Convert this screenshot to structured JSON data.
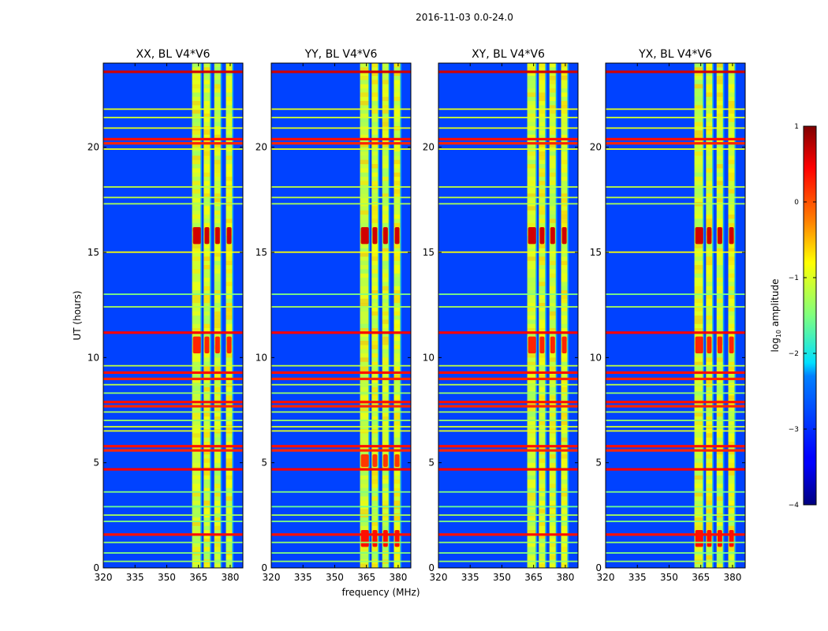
{
  "figure": {
    "suptitle": "2016-11-03 0.0-24.0"
  },
  "chart_data": {
    "type": "heatmap",
    "title": "2016-11-03 0.0-24.0",
    "xlabel": "frequency (MHz)",
    "ylabel": "UT (hours)",
    "xlim": [
      320,
      386
    ],
    "ylim": [
      0,
      24
    ],
    "x_ticks": [
      320,
      335,
      350,
      365,
      380
    ],
    "y_ticks": [
      0,
      5,
      10,
      15,
      20
    ],
    "panels": [
      {
        "title": "XX, BL V4*V6",
        "polarization": "XX"
      },
      {
        "title": "YY, BL V4*V6",
        "polarization": "YY"
      },
      {
        "title": "XY, BL V4*V6",
        "polarization": "XY"
      },
      {
        "title": "YX, BL V4*V6",
        "polarization": "YX"
      }
    ],
    "colorbar": {
      "label_prefix": "log",
      "label_sub": "10",
      "label_suffix": " amplitude",
      "range": [
        -4,
        1
      ],
      "ticks": [
        1,
        0,
        -1,
        -2,
        -3,
        -4
      ],
      "tick_labels": [
        "1",
        "0",
        "−1",
        "−2",
        "−3",
        "−4"
      ],
      "colormap": "jet"
    },
    "rfi_channels_mhz": [
      364.5,
      369,
      374,
      379.5
    ],
    "rfi_bands_mhz": [
      [
        362,
        366.5
      ],
      [
        367.5,
        370.5
      ],
      [
        372.5,
        375.5
      ],
      [
        378,
        381
      ]
    ],
    "flagged_hours": [
      {
        "t": 23.6,
        "level": 0.6
      },
      {
        "t": 21.8,
        "level": -1.0
      },
      {
        "t": 21.4,
        "level": -1.1
      },
      {
        "t": 20.9,
        "level": -1.0
      },
      {
        "t": 20.4,
        "level": 0.3
      },
      {
        "t": 20.2,
        "level": 0.2
      },
      {
        "t": 19.9,
        "level": -1.0
      },
      {
        "t": 18.1,
        "level": -1.2
      },
      {
        "t": 17.6,
        "level": -1.2
      },
      {
        "t": 17.3,
        "level": -1.3
      },
      {
        "t": 15.0,
        "level": -0.9
      },
      {
        "t": 13.0,
        "level": -1.5
      },
      {
        "t": 12.4,
        "level": -1.3
      },
      {
        "t": 11.2,
        "level": 0.4
      },
      {
        "t": 9.6,
        "level": -1.2
      },
      {
        "t": 9.3,
        "level": 0.3
      },
      {
        "t": 9.0,
        "level": 0.2
      },
      {
        "t": 8.7,
        "level": -1.2
      },
      {
        "t": 8.3,
        "level": -1.4
      },
      {
        "t": 7.9,
        "level": 0.3
      },
      {
        "t": 7.7,
        "level": 0.2
      },
      {
        "t": 7.4,
        "level": -1.3
      },
      {
        "t": 7.0,
        "level": -1.4
      },
      {
        "t": 6.7,
        "level": -1.1
      },
      {
        "t": 6.5,
        "level": -1.0
      },
      {
        "t": 5.8,
        "level": 0.3
      },
      {
        "t": 5.6,
        "level": 0.2
      },
      {
        "t": 4.7,
        "level": 0.4
      },
      {
        "t": 3.6,
        "level": -1.5
      },
      {
        "t": 2.9,
        "level": -1.6
      },
      {
        "t": 2.5,
        "level": -1.3
      },
      {
        "t": 2.2,
        "level": -1.5
      },
      {
        "t": 1.6,
        "level": 0.3
      },
      {
        "t": 1.2,
        "level": -1.4
      },
      {
        "t": 0.7,
        "level": -1.5
      },
      {
        "t": 0.3,
        "level": -1.4
      }
    ],
    "hotspots": [
      {
        "panel": [
          0,
          1,
          2,
          3
        ],
        "t_from": 15.4,
        "t_to": 16.2,
        "level": 0.6
      },
      {
        "panel": [
          0,
          2,
          3
        ],
        "t_from": 10.2,
        "t_to": 11.0,
        "level": 0.2
      },
      {
        "panel": [
          1,
          3
        ],
        "t_from": 1.0,
        "t_to": 1.8,
        "level": 0.3
      },
      {
        "panel": [
          1
        ],
        "t_from": 4.8,
        "t_to": 5.4,
        "level": 0.1
      }
    ]
  }
}
